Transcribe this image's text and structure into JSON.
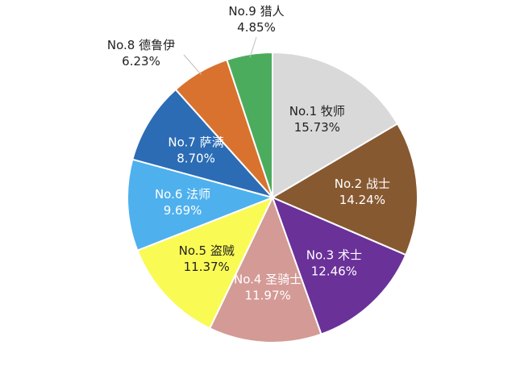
{
  "chart_data": {
    "type": "pie",
    "title": "",
    "slices": [
      {
        "label": "No.1 牧师",
        "value": 15.73,
        "pct_text": "15.73%",
        "color": "#d9d9d9",
        "text_color": "#222222"
      },
      {
        "label": "No.2 战士",
        "value": 14.24,
        "pct_text": "14.24%",
        "color": "#875931",
        "text_color": "#ffffff"
      },
      {
        "label": "No.3 术士",
        "value": 12.46,
        "pct_text": "12.46%",
        "color": "#6a3199",
        "text_color": "#ffffff"
      },
      {
        "label": "No.4 圣骑士",
        "value": 11.97,
        "pct_text": "11.97%",
        "color": "#d49a96",
        "text_color": "#ffffff"
      },
      {
        "label": "No.5 盗贼",
        "value": 11.37,
        "pct_text": "11.37%",
        "color": "#fafa55",
        "text_color": "#222222"
      },
      {
        "label": "No.6 法师",
        "value": 9.69,
        "pct_text": "9.69%",
        "color": "#4fb0ee",
        "text_color": "#ffffff"
      },
      {
        "label": "No.7 萨满",
        "value": 8.7,
        "pct_text": "8.70%",
        "color": "#2b6cb5",
        "text_color": "#ffffff"
      },
      {
        "label": "No.8 德鲁伊",
        "value": 6.23,
        "pct_text": "6.23%",
        "color": "#d9722e",
        "text_color": "#222222",
        "outside": true
      },
      {
        "label": "No.9 猎人",
        "value": 4.85,
        "pct_text": "4.85%",
        "color": "#4cac5e",
        "text_color": "#222222",
        "outside": true
      }
    ],
    "legend": "none"
  }
}
